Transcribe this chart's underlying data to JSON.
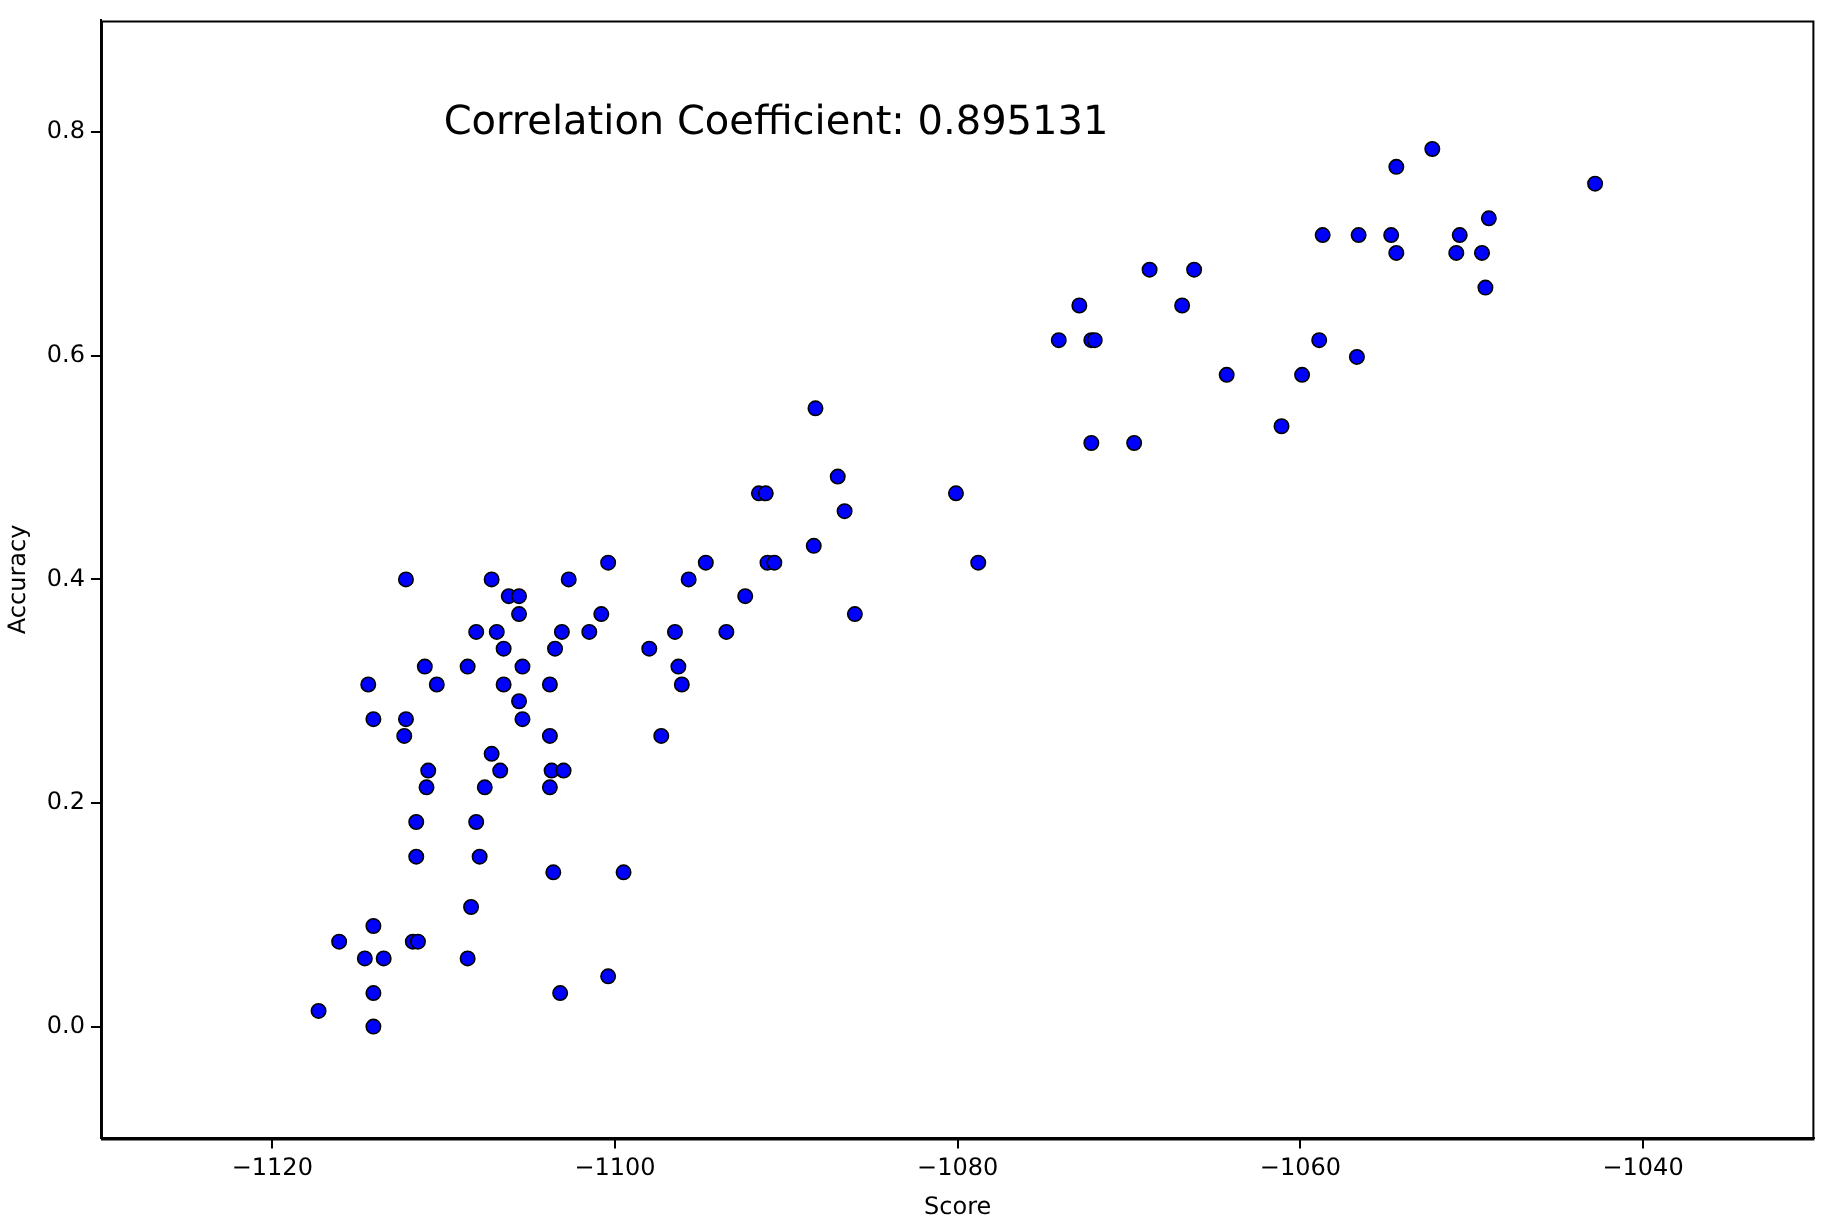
{
  "chart_data": {
    "type": "scatter",
    "xlabel": "Score",
    "ylabel": "Accuracy",
    "annotations": [
      "Correlation Coefficient: 0.895131"
    ],
    "xlim": [
      -1130,
      -1030
    ],
    "ylim": [
      -0.1,
      0.9
    ],
    "xticks": [
      {
        "value": -1120,
        "label": "−1120"
      },
      {
        "value": -1100,
        "label": "−1100"
      },
      {
        "value": -1080,
        "label": "−1080"
      },
      {
        "value": -1060,
        "label": "−1060"
      },
      {
        "value": -1040,
        "label": "−1040"
      }
    ],
    "yticks": [
      {
        "value": 0,
        "label": "0.0"
      },
      {
        "value": 0.2,
        "label": "0.2"
      },
      {
        "value": 0.4,
        "label": "0.4"
      },
      {
        "value": 0.6,
        "label": "0.6"
      },
      {
        "value": 0.8,
        "label": "0.8"
      }
    ],
    "grid": false,
    "legend": false,
    "marker": "circle",
    "series": [
      {
        "color": "#0000ff",
        "x": [
          -1117.3,
          -1116.1,
          -1114.4,
          -1114.1,
          -1114.6,
          -1114.1,
          -1114.1,
          -1114.1,
          -1113.5,
          -1112.2,
          -1112.2,
          -1112.3,
          -1111.8,
          -1111.5,
          -1111.1,
          -1110.4,
          -1110.9,
          -1111.0,
          -1111.6,
          -1111.6,
          -1108.6,
          -1108.1,
          -1107.2,
          -1106.9,
          -1107.2,
          -1107.6,
          -1106.7,
          -1108.1,
          -1107.9,
          -1108.4,
          -1108.6,
          -1106.5,
          -1106.2,
          -1105.6,
          -1105.6,
          -1105.4,
          -1106.5,
          -1105.6,
          -1105.4,
          -1103.8,
          -1103.8,
          -1103.7,
          -1103.8,
          -1103.5,
          -1103.1,
          -1102.7,
          -1103.0,
          -1103.6,
          -1103.2,
          -1101.5,
          -1100.8,
          -1100.4,
          -1100.4,
          -1099.5,
          -1098.0,
          -1097.3,
          -1096.5,
          -1096.3,
          -1096.1,
          -1095.7,
          -1094.7,
          -1093.5,
          -1092.4,
          -1091.6,
          -1091.2,
          -1091.1,
          -1090.7,
          -1088.4,
          -1088.3,
          -1087.0,
          -1086.6,
          -1086.0,
          -1080.1,
          -1078.8,
          -1074.1,
          -1072.9,
          -1072.2,
          -1072.0,
          -1072.2,
          -1069.7,
          -1068.8,
          -1066.9,
          -1066.2,
          -1064.3,
          -1061.1,
          -1059.9,
          -1058.9,
          -1058.7,
          -1056.7,
          -1056.6,
          -1054.7,
          -1054.4,
          -1054.4,
          -1052.3,
          -1050.9,
          -1050.7,
          -1049.4,
          -1049.0,
          -1049.2,
          -1042.8
        ],
        "values": [
          0.014,
          0.076,
          0.306,
          0.275,
          0.061,
          0.09,
          0.03,
          0.0,
          0.061,
          0.4,
          0.275,
          0.26,
          0.076,
          0.076,
          0.322,
          0.306,
          0.229,
          0.214,
          0.183,
          0.152,
          0.322,
          0.353,
          0.4,
          0.353,
          0.244,
          0.214,
          0.229,
          0.183,
          0.152,
          0.107,
          0.061,
          0.338,
          0.385,
          0.385,
          0.369,
          0.322,
          0.306,
          0.291,
          0.275,
          0.306,
          0.26,
          0.229,
          0.214,
          0.338,
          0.353,
          0.4,
          0.229,
          0.138,
          0.03,
          0.353,
          0.369,
          0.415,
          0.045,
          0.138,
          0.338,
          0.26,
          0.353,
          0.322,
          0.306,
          0.4,
          0.415,
          0.353,
          0.385,
          0.477,
          0.477,
          0.415,
          0.415,
          0.43,
          0.553,
          0.492,
          0.461,
          0.369,
          0.477,
          0.415,
          0.614,
          0.645,
          0.614,
          0.614,
          0.522,
          0.522,
          0.677,
          0.645,
          0.677,
          0.583,
          0.537,
          0.583,
          0.614,
          0.708,
          0.599,
          0.708,
          0.708,
          0.692,
          0.769,
          0.785,
          0.692,
          0.708,
          0.692,
          0.723,
          0.661,
          0.754
        ]
      }
    ]
  }
}
